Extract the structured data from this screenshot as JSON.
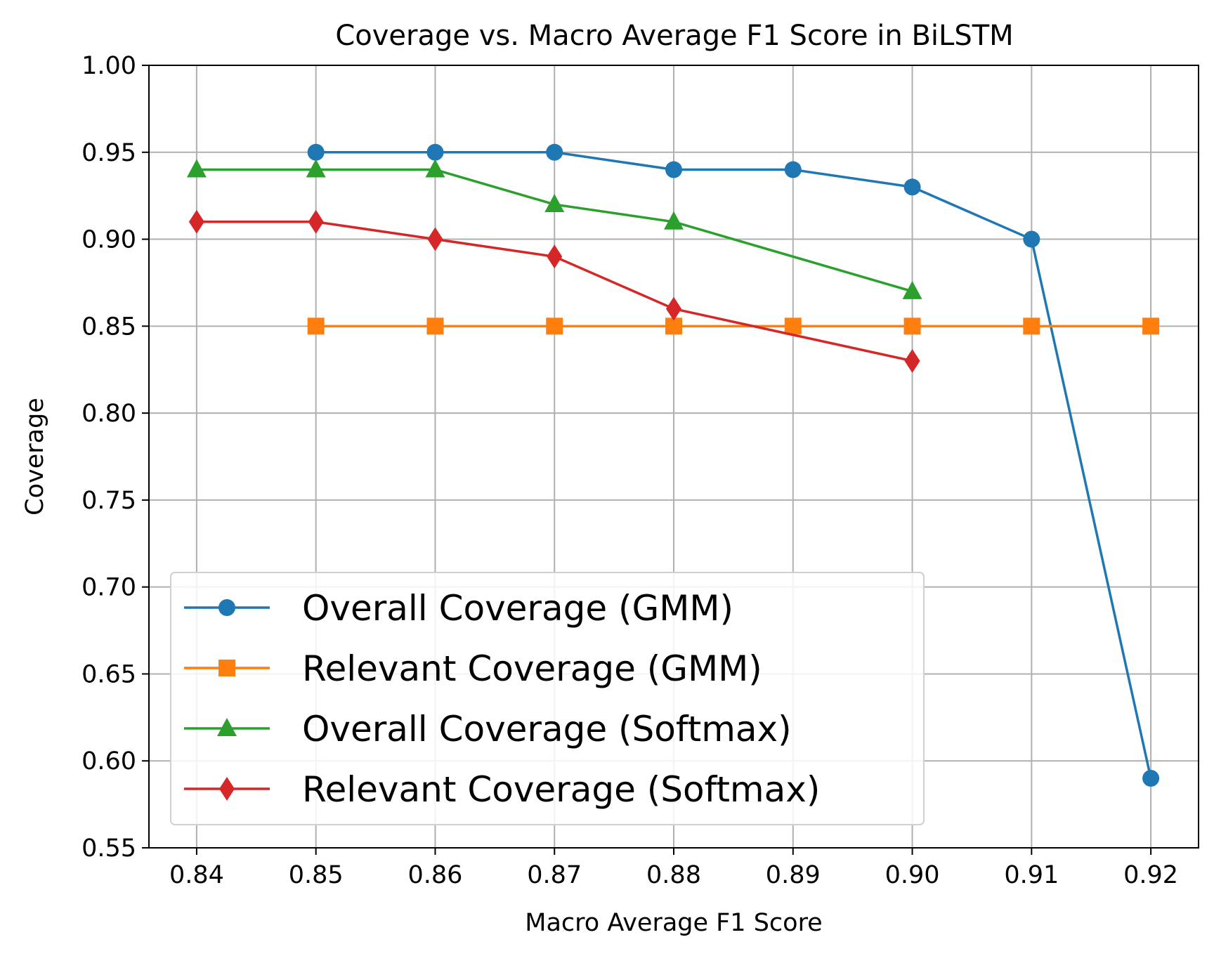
{
  "chart_data": {
    "type": "line",
    "title": "Coverage vs. Macro Average F1 Score in BiLSTM",
    "xlabel": "Macro Average F1 Score",
    "ylabel": "Coverage",
    "xlim": [
      0.836,
      0.924
    ],
    "ylim": [
      0.55,
      1.0
    ],
    "xticks": [
      0.84,
      0.85,
      0.86,
      0.87,
      0.88,
      0.89,
      0.9,
      0.91,
      0.92
    ],
    "xtick_labels": [
      "0.84",
      "0.85",
      "0.86",
      "0.87",
      "0.88",
      "0.89",
      "0.90",
      "0.91",
      "0.92"
    ],
    "yticks": [
      0.55,
      0.6,
      0.65,
      0.7,
      0.75,
      0.8,
      0.85,
      0.9,
      0.95,
      1.0
    ],
    "ytick_labels": [
      "0.55",
      "0.60",
      "0.65",
      "0.70",
      "0.75",
      "0.80",
      "0.85",
      "0.90",
      "0.95",
      "1.00"
    ],
    "grid": true,
    "legend_position": "lower-left",
    "series": [
      {
        "name": "Overall Coverage (GMM)",
        "color": "#1f77b4",
        "marker": "circle",
        "x": [
          0.85,
          0.86,
          0.87,
          0.88,
          0.89,
          0.9,
          0.91,
          0.92
        ],
        "y": [
          0.95,
          0.95,
          0.95,
          0.94,
          0.94,
          0.93,
          0.9,
          0.59
        ]
      },
      {
        "name": "Relevant Coverage (GMM)",
        "color": "#ff7f0e",
        "marker": "square",
        "x": [
          0.85,
          0.86,
          0.87,
          0.88,
          0.89,
          0.9,
          0.91,
          0.92
        ],
        "y": [
          0.85,
          0.85,
          0.85,
          0.85,
          0.85,
          0.85,
          0.85,
          0.85
        ]
      },
      {
        "name": "Overall Coverage (Softmax)",
        "color": "#2ca02c",
        "marker": "triangle",
        "x": [
          0.84,
          0.85,
          0.86,
          0.87,
          0.88,
          0.9
        ],
        "y": [
          0.94,
          0.94,
          0.94,
          0.92,
          0.91,
          0.87
        ]
      },
      {
        "name": "Relevant Coverage (Softmax)",
        "color": "#d62728",
        "marker": "diamond",
        "x": [
          0.84,
          0.85,
          0.86,
          0.87,
          0.88,
          0.9
        ],
        "y": [
          0.91,
          0.91,
          0.9,
          0.89,
          0.86,
          0.83
        ]
      }
    ]
  }
}
